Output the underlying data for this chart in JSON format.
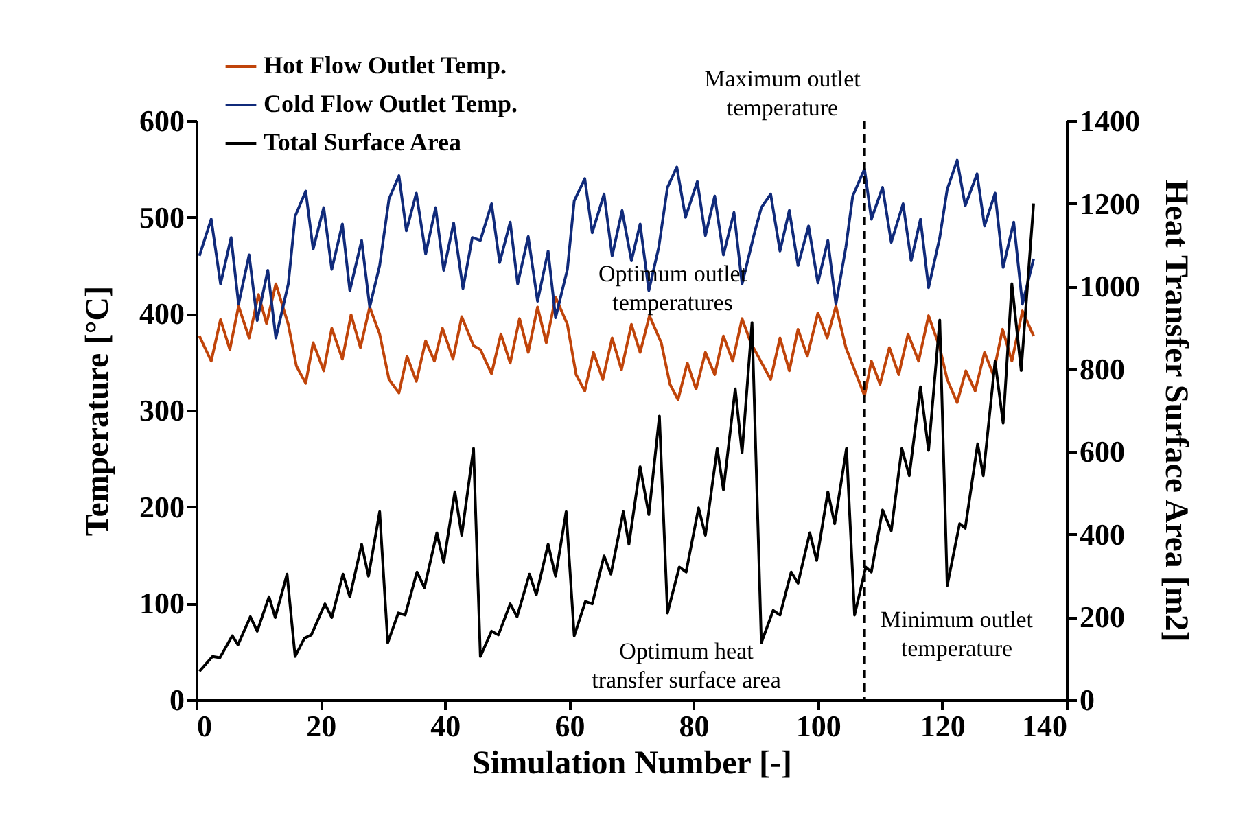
{
  "chart_data": {
    "type": "line",
    "xlabel": "Simulation Number [-]",
    "ylabel": "Temperature [°C]",
    "y2label": "Heat Transfer Surface Area [m2]",
    "xlim": [
      0,
      140
    ],
    "xticks": [
      0,
      20,
      40,
      60,
      80,
      100,
      120,
      140
    ],
    "ylim": [
      0,
      600
    ],
    "yticks": [
      0,
      100,
      200,
      300,
      400,
      500,
      600
    ],
    "y2lim": [
      0,
      1400
    ],
    "y2ticks": [
      0,
      200,
      400,
      600,
      800,
      1000,
      1200,
      1400
    ],
    "legend": "top left",
    "ref_lines": [
      {
        "axis": "x",
        "value": 107.5,
        "line_style": "dashed",
        "color": "#000000"
      }
    ],
    "annotations": [
      "Maximum outlet temperature",
      "Optimum outlet temperatures",
      "Optimum heat transfer surface area",
      "Minimum outlet temperature"
    ],
    "series": [
      {
        "name": "Hot Flow Outlet Temp.",
        "color": "#c0440a",
        "x": [
          0.5,
          2.4,
          3.9,
          5.4,
          6.8,
          8.5,
          10,
          11.3,
          12.8,
          14.8,
          16.1,
          17.6,
          18.8,
          20.5,
          21.8,
          23.5,
          24.9,
          26.4,
          27.9,
          29.5,
          31,
          32.6,
          33.9,
          35.4,
          36.9,
          38.3,
          39.6,
          41.3,
          42.7,
          44.6,
          45.7,
          47.5,
          49,
          50.5,
          52,
          53.4,
          54.9,
          56.3,
          57.8,
          59.7,
          61.1,
          62.5,
          63.9,
          65.4,
          66.9,
          68.4,
          70,
          71.4,
          72.9,
          74.8,
          76.2,
          77.5,
          79,
          80.4,
          81.9,
          83.4,
          84.8,
          86.3,
          87.8,
          89.2,
          92.4,
          93.9,
          95.4,
          96.8,
          98.3,
          100,
          101.5,
          102.9,
          104.5,
          107.5,
          108.6,
          110,
          111.5,
          113,
          114.5,
          116.2,
          117.8,
          119.6,
          120.8,
          122.4,
          123.8,
          125.3,
          126.8,
          128.2,
          129.7,
          131.2,
          132.9,
          134.7
        ],
        "values": [
          377,
          351,
          394,
          363,
          408,
          375,
          420,
          390,
          431,
          389,
          346,
          328,
          370,
          341,
          385,
          353,
          399,
          365,
          407,
          379,
          332,
          318,
          356,
          330,
          372,
          351,
          385,
          353,
          397,
          367,
          363,
          338,
          379,
          349,
          395,
          360,
          407,
          370,
          417,
          389,
          337,
          320,
          360,
          332,
          375,
          342,
          389,
          360,
          398,
          370,
          327,
          311,
          349,
          322,
          360,
          337,
          377,
          351,
          395,
          370,
          332,
          375,
          341,
          384,
          356,
          401,
          375,
          408,
          365,
          315,
          351,
          327,
          365,
          337,
          379,
          351,
          398,
          365,
          332,
          308,
          341,
          320,
          360,
          337,
          384,
          351,
          403,
          377
        ]
      },
      {
        "name": "Cold Flow Outlet Temp.",
        "color": "#102a7a",
        "x": [
          0.5,
          2.4,
          3.9,
          5.6,
          6.8,
          8.5,
          9.8,
          11.5,
          12.8,
          14.8,
          15.9,
          17.6,
          18.8,
          20.5,
          21.8,
          23.5,
          24.7,
          26.6,
          27.9,
          29.5,
          31,
          32.6,
          33.8,
          35.4,
          36.9,
          38.5,
          39.8,
          41.4,
          42.9,
          44.4,
          45.7,
          47.5,
          48.8,
          50.5,
          51.7,
          53.4,
          54.9,
          56.6,
          57.8,
          59.7,
          60.8,
          62.5,
          63.7,
          65.6,
          66.9,
          68.5,
          70,
          71.4,
          72.8,
          74.4,
          75.8,
          77.3,
          78.7,
          80.6,
          81.9,
          83.4,
          84.8,
          86.5,
          87.8,
          89.8,
          90.9,
          92.4,
          93.9,
          95.4,
          96.8,
          98.5,
          100,
          101.6,
          102.9,
          104.5,
          105.6,
          107.5,
          108.6,
          110.4,
          111.8,
          113.7,
          115,
          116.5,
          117.8,
          119.6,
          120.8,
          122.4,
          123.7,
          125.6,
          126.8,
          128.5,
          129.8,
          131.5,
          132.9,
          134.7
        ],
        "values": [
          460,
          498,
          431,
          479,
          410,
          461,
          393,
          445,
          375,
          431,
          501,
          527,
          467,
          510,
          446,
          493,
          424,
          476,
          407,
          450,
          519,
          543,
          486,
          525,
          462,
          510,
          445,
          494,
          426,
          479,
          476,
          514,
          453,
          495,
          431,
          480,
          413,
          465,
          396,
          446,
          517,
          540,
          484,
          524,
          460,
          507,
          455,
          493,
          424,
          469,
          531,
          552,
          500,
          537,
          481,
          522,
          461,
          505,
          431,
          484,
          510,
          524,
          465,
          507,
          450,
          491,
          432,
          476,
          410,
          469,
          522,
          550,
          498,
          531,
          474,
          514,
          455,
          498,
          427,
          479,
          529,
          559,
          512,
          545,
          491,
          525,
          448,
          495,
          410,
          457
        ]
      },
      {
        "name": "Total Surface Area",
        "color": "#000000",
        "axis": "y2",
        "x": [
          0.5,
          2.6,
          3.8,
          5.8,
          6.7,
          8.7,
          9.8,
          11.7,
          12.7,
          14.6,
          15.9,
          17.4,
          18.5,
          20.7,
          21.8,
          23.6,
          24.7,
          26.6,
          27.7,
          29.5,
          30.8,
          32.5,
          33.6,
          35.5,
          36.7,
          38.7,
          39.8,
          41.6,
          42.7,
          44.6,
          45.7,
          47.5,
          48.6,
          50.5,
          51.6,
          53.6,
          54.7,
          56.6,
          57.8,
          59.5,
          60.8,
          62.6,
          63.7,
          65.6,
          66.7,
          68.7,
          69.6,
          71.4,
          72.8,
          74.5,
          75.8,
          77.7,
          78.8,
          80.8,
          81.9,
          83.8,
          84.8,
          86.7,
          87.8,
          89.4,
          90.9,
          92.8,
          93.9,
          95.7,
          96.8,
          98.7,
          99.8,
          101.6,
          102.7,
          104.6,
          105.9,
          107.7,
          108.6,
          110.4,
          111.8,
          113.5,
          114.7,
          116.5,
          117.8,
          119.6,
          120.8,
          122.8,
          123.7,
          125.7,
          126.6,
          128.5,
          129.8,
          131.2,
          132.7,
          134.7
        ],
        "values": [
          69,
          105,
          102,
          155,
          133,
          201,
          166,
          249,
          199,
          304,
          105,
          149,
          157,
          232,
          199,
          304,
          249,
          376,
          299,
          455,
          138,
          210,
          205,
          309,
          271,
          404,
          332,
          503,
          398,
          608,
          105,
          166,
          157,
          232,
          201,
          304,
          254,
          376,
          299,
          455,
          155,
          238,
          232,
          348,
          304,
          455,
          376,
          564,
          448,
          686,
          210,
          321,
          309,
          464,
          398,
          608,
          508,
          752,
          597,
          912,
          138,
          216,
          205,
          309,
          282,
          404,
          337,
          503,
          426,
          608,
          205,
          321,
          309,
          459,
          409,
          608,
          542,
          757,
          603,
          918,
          276,
          426,
          415,
          619,
          542,
          818,
          669,
          1006,
          796,
          1200
        ]
      }
    ]
  }
}
